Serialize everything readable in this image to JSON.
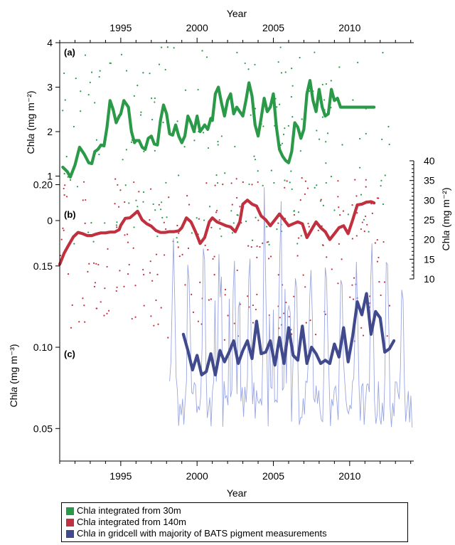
{
  "colors": {
    "green": "#2a9a48",
    "red": "#c0303e",
    "navy": "#414a8c",
    "lightblue": "#9aa6e2"
  },
  "chart_data": {
    "type": "line",
    "x_axis": {
      "top_label": "Year",
      "bottom_label": "Year",
      "range": [
        1991.0,
        2014.2
      ],
      "top_ticks": [
        "1995",
        "2000",
        "2005",
        "2010"
      ],
      "bottom_ticks": [
        "1995",
        "2000",
        "2005",
        "2010"
      ]
    },
    "panels": [
      {
        "letter": "(a)",
        "ylabel": "Chla (mg m⁻²)",
        "ylabel_main": "Chl",
        "ylabel_italic": "a",
        "ylabel_rest": " (mg m⁻²)",
        "y_axis": "left",
        "ylim": [
          0,
          4
        ],
        "yticks": [
          "0",
          "1",
          "2",
          "3",
          "4"
        ],
        "series": [
          {
            "name": "Chla integrated from 30m",
            "style": "thick-line",
            "x": [
              1991.2,
              1991.5,
              1991.7,
              1992.0,
              1992.3,
              1992.6,
              1992.9,
              1993.1,
              1993.3,
              1993.5,
              1993.7,
              1993.9,
              1994.1,
              1994.3,
              1994.5,
              1994.7,
              1994.9,
              1995.0,
              1995.2,
              1995.5,
              1995.7,
              1995.9,
              1996.0,
              1996.2,
              1996.4,
              1996.6,
              1996.8,
              1997.0,
              1997.2,
              1997.4,
              1997.6,
              1997.8,
              1998.0,
              1998.2,
              1998.4,
              1998.6,
              1998.8,
              1999.0,
              1999.2,
              1999.4,
              1999.6,
              1999.8,
              2000.0,
              2000.2,
              2000.5,
              2000.7,
              2000.9,
              2001.0,
              2001.2,
              2001.4,
              2001.6,
              2001.8,
              2002.0,
              2002.2,
              2002.4,
              2002.6,
              2002.8,
              2003.0,
              2003.2,
              2003.4,
              2003.6,
              2003.8,
              2004.0,
              2004.2,
              2004.4,
              2004.6,
              2004.8,
              2005.0,
              2005.2,
              2005.4,
              2005.6,
              2005.8,
              2006.0,
              2006.2,
              2006.4,
              2006.6,
              2006.8,
              2007.0,
              2007.2,
              2007.4,
              2007.6,
              2007.8,
              2008.0,
              2008.2,
              2008.4,
              2008.6,
              2008.8,
              2009.0,
              2009.2,
              2009.4,
              2009.6,
              2009.8,
              2010.0,
              2010.2,
              2010.4,
              2010.6,
              2010.8,
              2011.0,
              2011.2,
              2011.4,
              2011.6
            ],
            "y": [
              1.2,
              1.1,
              0.98,
              1.25,
              1.65,
              1.5,
              1.3,
              1.28,
              1.55,
              1.6,
              1.7,
              1.68,
              2.1,
              2.7,
              2.5,
              2.2,
              2.35,
              2.4,
              2.7,
              2.55,
              2.0,
              1.75,
              1.8,
              1.8,
              1.65,
              1.6,
              1.85,
              1.9,
              1.72,
              1.7,
              2.25,
              2.6,
              2.4,
              1.95,
              1.92,
              2.15,
              1.9,
              1.75,
              1.9,
              2.35,
              2.2,
              2.0,
              2.35,
              2.0,
              2.15,
              2.05,
              2.3,
              2.25,
              2.85,
              3.0,
              2.65,
              2.35,
              2.7,
              2.85,
              2.4,
              2.55,
              2.45,
              2.35,
              2.7,
              3.1,
              2.8,
              2.15,
              1.9,
              2.3,
              2.75,
              2.45,
              2.55,
              2.85,
              2.1,
              1.6,
              1.45,
              1.35,
              1.3,
              1.55,
              2.2,
              2.1,
              1.85,
              2.05,
              2.85,
              3.15,
              2.7,
              2.45,
              2.95,
              2.55,
              2.35,
              2.4,
              2.95,
              2.7,
              2.75,
              2.55,
              2.55,
              2.55,
              2.55,
              2.55,
              2.55,
              2.55,
              2.55,
              2.55,
              2.55,
              2.55,
              2.55
            ]
          }
        ]
      },
      {
        "letter": "(b)",
        "ylabel": "Chla (mg m⁻²)",
        "ylabel_main": "Chl",
        "ylabel_italic": "a",
        "ylabel_rest": " (mg m⁻²)",
        "y_axis": "right",
        "ylim": [
          10,
          40
        ],
        "yticks": [
          "10",
          "15",
          "20",
          "25",
          "30",
          "35",
          "40"
        ],
        "series": [
          {
            "name": "Chla integrated from 140m",
            "style": "thick-line",
            "x": [
              1991.0,
              1991.3,
              1991.6,
              1991.9,
              1992.2,
              1992.5,
              1992.8,
              1993.1,
              1993.4,
              1993.7,
              1994.0,
              1994.3,
              1994.6,
              1994.9,
              1995.0,
              1995.3,
              1995.6,
              1995.9,
              1996.1,
              1996.4,
              1996.7,
              1997.0,
              1997.3,
              1997.6,
              1997.9,
              1998.2,
              1998.5,
              1998.8,
              1999.0,
              1999.3,
              1999.6,
              1999.9,
              2000.2,
              2000.5,
              2000.8,
              2001.0,
              2001.3,
              2001.6,
              2001.9,
              2002.2,
              2002.5,
              2002.8,
              2003.0,
              2003.3,
              2003.6,
              2003.9,
              2004.2,
              2004.5,
              2004.8,
              2005.1,
              2005.4,
              2005.7,
              2006.0,
              2006.3,
              2006.6,
              2006.9,
              2007.2,
              2007.5,
              2007.8,
              2008.1,
              2008.4,
              2008.7,
              2009.0,
              2009.3,
              2009.6,
              2009.9,
              2010.2,
              2010.5,
              2010.8,
              2011.1,
              2011.4,
              2011.6
            ],
            "y": [
              13.7,
              16.6,
              18.7,
              20.7,
              21.8,
              21.5,
              21.0,
              21.0,
              21.4,
              21.7,
              21.7,
              21.9,
              21.9,
              22.5,
              23.6,
              25.4,
              25.5,
              26.5,
              27.2,
              25.0,
              24.0,
              23.4,
              22.3,
              21.8,
              21.8,
              22.0,
              22.0,
              22.2,
              23.0,
              25.5,
              24.5,
              22.0,
              19.0,
              20.5,
              24.5,
              25.5,
              24.5,
              24.0,
              23.5,
              23.2,
              22.0,
              24.5,
              29.0,
              30.0,
              29.0,
              28.5,
              26.0,
              25.0,
              23.5,
              25.0,
              26.5,
              25.0,
              23.5,
              24.0,
              24.5,
              24.0,
              20.5,
              22.5,
              24.5,
              23.0,
              22.0,
              20.0,
              21.5,
              23.0,
              23.5,
              21.5,
              25.0,
              28.8,
              29.0,
              29.5,
              29.6,
              29.3
            ]
          }
        ]
      },
      {
        "letter": "(c)",
        "ylabel": "Chla (mg m⁻³)",
        "ylabel_main": "Chl",
        "ylabel_italic": "a",
        "ylabel_rest": " (mg m⁻³)",
        "y_axis": "left",
        "ylim": [
          0.03,
          0.23
        ],
        "yticks": [
          "0.05",
          "0.10",
          "0.15",
          "0.20"
        ],
        "series": [
          {
            "name": "Chla in gridcell with majority of BATS pigment measurements",
            "style": "thick-line",
            "x": [
              1999.1,
              1999.4,
              1999.7,
              2000.0,
              2000.3,
              2000.6,
              2000.9,
              2001.2,
              2001.5,
              2001.8,
              2002.1,
              2002.4,
              2002.7,
              2003.0,
              2003.3,
              2003.6,
              2003.9,
              2004.2,
              2004.5,
              2004.8,
              2005.1,
              2005.4,
              2005.7,
              2006.0,
              2006.3,
              2006.6,
              2006.9,
              2007.2,
              2007.5,
              2007.8,
              2008.1,
              2008.4,
              2008.7,
              2009.0,
              2009.3,
              2009.6,
              2009.9,
              2010.2,
              2010.5,
              2010.8,
              2011.1,
              2011.4,
              2011.7,
              2012.0,
              2012.3,
              2012.6,
              2012.9
            ],
            "y": [
              0.108,
              0.098,
              0.086,
              0.095,
              0.083,
              0.085,
              0.096,
              0.083,
              0.098,
              0.091,
              0.097,
              0.104,
              0.09,
              0.098,
              0.104,
              0.093,
              0.116,
              0.096,
              0.097,
              0.104,
              0.089,
              0.106,
              0.09,
              0.112,
              0.095,
              0.092,
              0.113,
              0.09,
              0.1,
              0.096,
              0.09,
              0.092,
              0.09,
              0.102,
              0.094,
              0.112,
              0.091,
              0.107,
              0.128,
              0.12,
              0.133,
              0.108,
              0.122,
              0.118,
              0.097,
              0.099,
              0.104
            ]
          }
        ]
      }
    ],
    "legend": {
      "placement": "bottom",
      "entries": [
        {
          "main": "Chl",
          "italic": "a",
          "rest": " integrated from 30m",
          "color": "#2a9a48"
        },
        {
          "main": "Chl",
          "italic": "a",
          "rest": " integrated from 140m",
          "color": "#c0303e"
        },
        {
          "main": "Chl",
          "italic": "a",
          "rest": " in gridcell with majority of BATS pigment measurements",
          "color": "#414a8c"
        }
      ]
    }
  }
}
